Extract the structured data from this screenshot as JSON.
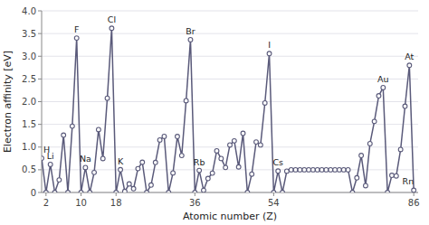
{
  "chart_data": {
    "type": "line",
    "xlabel": "Atomic number (Z)",
    "ylabel": "Electron affinity [eV]",
    "color": "#5a5a7a",
    "marker": "circle",
    "grid": true,
    "xlim": [
      1,
      87
    ],
    "xticks": [
      2,
      10,
      18,
      36,
      54,
      86
    ],
    "ylim": [
      0,
      4.0
    ],
    "yticks": [
      0,
      0.5,
      {
        "value": 1.0,
        "label": "1.0"
      },
      1.5,
      {
        "value": 2.0,
        "label": "2.0"
      },
      2.5,
      {
        "value": 3.0,
        "label": "3.0"
      },
      3.5,
      {
        "value": 4.0,
        "label": "4.0"
      }
    ],
    "x": [
      1,
      2,
      3,
      4,
      5,
      6,
      7,
      8,
      9,
      10,
      11,
      12,
      13,
      14,
      15,
      16,
      17,
      18,
      19,
      20,
      21,
      22,
      23,
      24,
      25,
      26,
      27,
      28,
      29,
      30,
      31,
      32,
      33,
      34,
      35,
      36,
      37,
      38,
      39,
      40,
      41,
      42,
      43,
      44,
      45,
      46,
      47,
      48,
      49,
      50,
      51,
      52,
      53,
      54,
      55,
      56,
      57,
      58,
      59,
      60,
      61,
      62,
      63,
      64,
      65,
      66,
      67,
      68,
      69,
      70,
      71,
      72,
      73,
      74,
      75,
      76,
      77,
      78,
      79,
      80,
      81,
      82,
      83,
      84,
      85,
      86
    ],
    "values": [
      0.754,
      0.0,
      0.618,
      0.0,
      0.277,
      1.263,
      0.0,
      1.461,
      3.401,
      0.0,
      0.548,
      0.0,
      0.441,
      1.385,
      0.747,
      2.077,
      3.617,
      0.0,
      0.501,
      0.024,
      0.188,
      0.084,
      0.525,
      0.666,
      0.0,
      0.163,
      0.661,
      1.156,
      1.235,
      0.0,
      0.43,
      1.233,
      0.814,
      2.021,
      3.365,
      0.0,
      0.486,
      0.048,
      0.307,
      0.426,
      0.917,
      0.748,
      0.55,
      1.046,
      1.137,
      0.562,
      1.302,
      0.0,
      0.404,
      1.112,
      1.047,
      1.971,
      3.059,
      0.0,
      0.472,
      0.0,
      0.47,
      0.5,
      0.5,
      0.5,
      0.5,
      0.5,
      0.5,
      0.5,
      0.5,
      0.5,
      0.5,
      0.5,
      0.5,
      0.5,
      0.5,
      0.0,
      0.322,
      0.815,
      0.15,
      1.077,
      1.565,
      2.128,
      2.309,
      0.0,
      0.377,
      0.364,
      0.946,
      1.9,
      2.8,
      0.05
    ],
    "annotations": [
      {
        "text": "H",
        "x": 1,
        "y": 0.754
      },
      {
        "text": "Li",
        "x": 3,
        "y": 0.618
      },
      {
        "text": "F",
        "x": 9,
        "y": 3.401
      },
      {
        "text": "Na",
        "x": 11,
        "y": 0.548
      },
      {
        "text": "Cl",
        "x": 17,
        "y": 3.617
      },
      {
        "text": "K",
        "x": 19,
        "y": 0.501
      },
      {
        "text": "Br",
        "x": 35,
        "y": 3.365
      },
      {
        "text": "Rb",
        "x": 37,
        "y": 0.486
      },
      {
        "text": "I",
        "x": 53,
        "y": 3.059
      },
      {
        "text": "Cs",
        "x": 55,
        "y": 0.472
      },
      {
        "text": "Au",
        "x": 79,
        "y": 2.309
      },
      {
        "text": "At",
        "x": 85,
        "y": 2.8
      },
      {
        "text": "Rn",
        "x": 86,
        "y": 0.05
      }
    ]
  }
}
